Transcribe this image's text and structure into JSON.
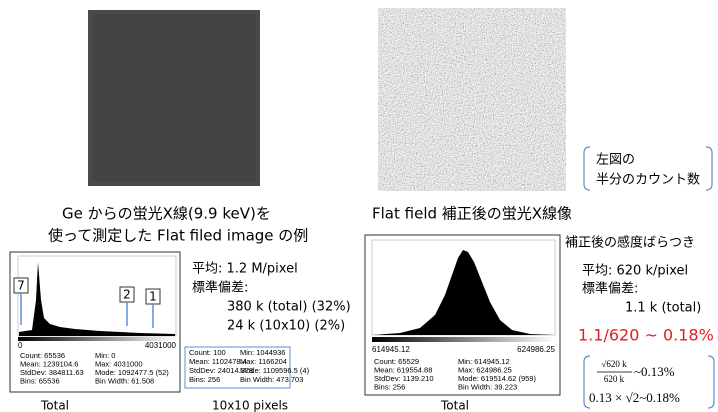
{
  "left": {
    "caption": [
      "Ge からの蛍光X線(9.9 keV)を",
      "使って測定した Flat filed image の例"
    ],
    "histogram": {
      "axis": [
        "0",
        "4031000"
      ],
      "callouts": [
        "7",
        "2",
        "1"
      ],
      "stats": [
        [
          "Count: 65536",
          "Min: 0"
        ],
        [
          "Mean: 1239104.6",
          "Max: 4031000"
        ],
        [
          "StdDev: 384811.63",
          "Mode: 1092477.5 (52)"
        ],
        [
          "Bins: 65536",
          "Bin Width: 61.508"
        ]
      ],
      "label": "Total"
    },
    "summary": [
      "平均: 1.2 M/pixel",
      "標準偏差:",
      "380 k (total) (32%)",
      "24 k (10x10) (2%)"
    ],
    "subset": {
      "stats": [
        [
          "Count: 100",
          "Min: 1044936"
        ],
        [
          "Mean: 1102478.4",
          "Max: 1166204"
        ],
        [
          "StdDev: 24014.378",
          "Mode: 1109596.5 (4)"
        ],
        [
          "Bins: 256",
          "Bin Width: 473.703"
        ]
      ],
      "label": "10x10 pixels"
    }
  },
  "right": {
    "caption": "Flat field 補正後の蛍光X線像",
    "bracket_note": [
      "左図の",
      "半分のカウント数"
    ],
    "histogram": {
      "axis": [
        "614945.12",
        "624986.25"
      ],
      "stats": [
        [
          "Count: 65529",
          "Min: 614945.12"
        ],
        [
          "Mean: 619554.88",
          "Max: 624986.25"
        ],
        [
          "StdDev: 1139.210",
          "Mode: 619514.62 (959)"
        ],
        [
          "Bins: 256",
          "Bin Width: 39.223"
        ]
      ],
      "label": "Total"
    },
    "summary": [
      "補正後の感度ばらつき",
      "平均: 620 k/pixel",
      "標準偏差:",
      "1.1 k (total)"
    ],
    "result": "1.1/620 ~ 0.18%",
    "formula": {
      "numerator": "√620 k",
      "denominator": "620 k",
      "first_result": "~0.13%",
      "second_line": "0.13 × √2~0.18%"
    }
  }
}
